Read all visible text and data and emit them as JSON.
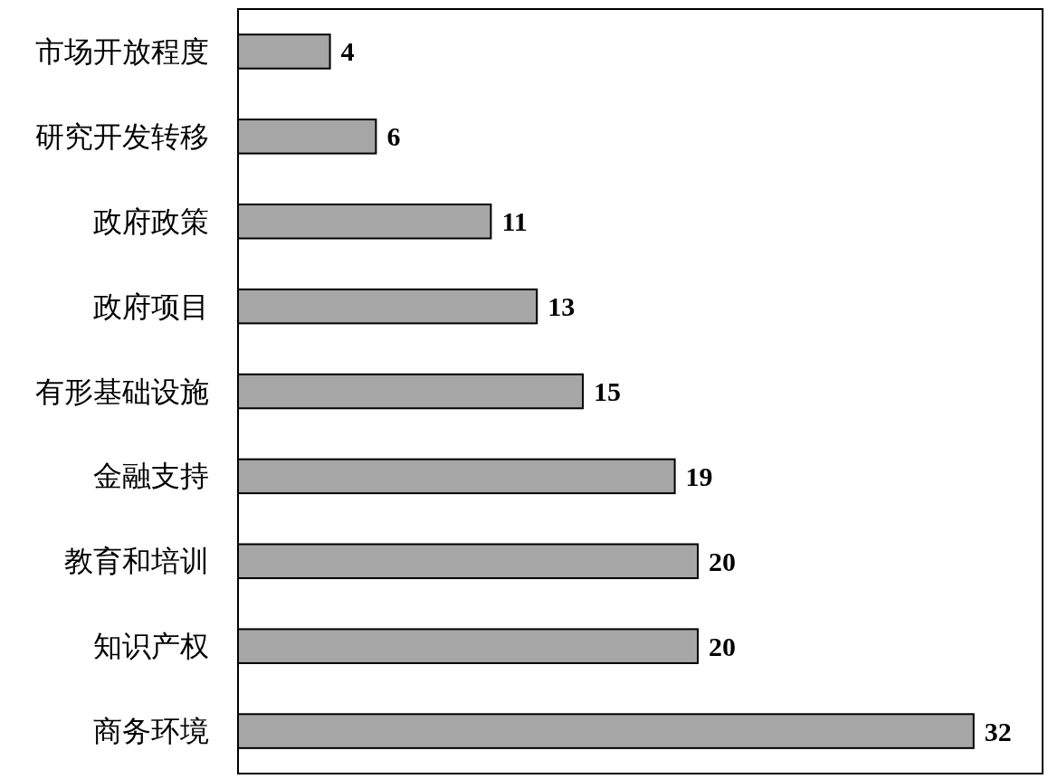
{
  "chart_data": {
    "type": "bar",
    "orientation": "horizontal",
    "categories": [
      "市场开放程度",
      "研究开发转移",
      "政府政策",
      "政府项目",
      "有形基础设施",
      "金融支持",
      "教育和培训",
      "知识产权",
      "商务环境"
    ],
    "values": [
      4,
      6,
      11,
      13,
      15,
      19,
      20,
      20,
      32
    ],
    "color": "#a6a6a6",
    "xlim": [
      0,
      35
    ],
    "tick_labels": "y",
    "data_labels": true
  }
}
